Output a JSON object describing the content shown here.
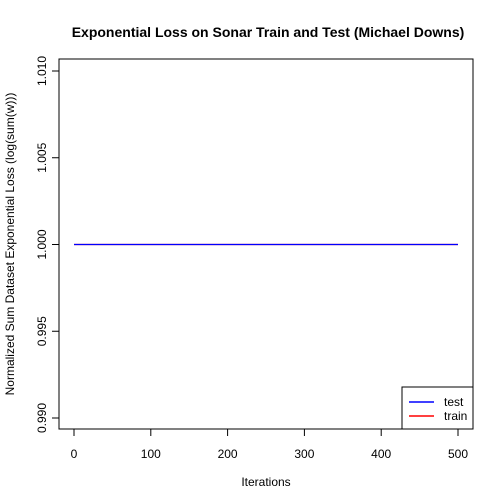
{
  "chart_data": {
    "type": "line",
    "title": "Exponential Loss on Sonar Train and Test (Michael Downs)",
    "xlabel": "Iterations",
    "ylabel": "Normalized Sum Dataset Exponential Loss (log(sum(w)))",
    "xlim": [
      0,
      500
    ],
    "ylim": [
      0.99,
      1.01
    ],
    "x_ticks": [
      0,
      100,
      200,
      300,
      400,
      500
    ],
    "y_ticks": [
      0.99,
      0.995,
      1.0,
      1.005,
      1.01
    ],
    "x_tick_labels": [
      "0",
      "100",
      "200",
      "300",
      "400",
      "500"
    ],
    "y_tick_labels": [
      "0.990",
      "0.995",
      "1.000",
      "1.005",
      "1.010"
    ],
    "series": [
      {
        "name": "test",
        "color": "#0000ff",
        "x": [
          0,
          100,
          200,
          300,
          400,
          500
        ],
        "y": [
          1.0,
          1.0,
          1.0,
          1.0,
          1.0,
          1.0
        ]
      },
      {
        "name": "train",
        "color": "#ff0000",
        "x": [
          0,
          100,
          200,
          300,
          400,
          500
        ],
        "y": [
          1.0,
          1.0,
          1.0,
          1.0,
          1.0,
          1.0
        ]
      }
    ],
    "draw_order": [
      "train",
      "test"
    ],
    "legend": {
      "position": "bottom-right",
      "entries": [
        "test",
        "train"
      ]
    },
    "grid": false
  }
}
